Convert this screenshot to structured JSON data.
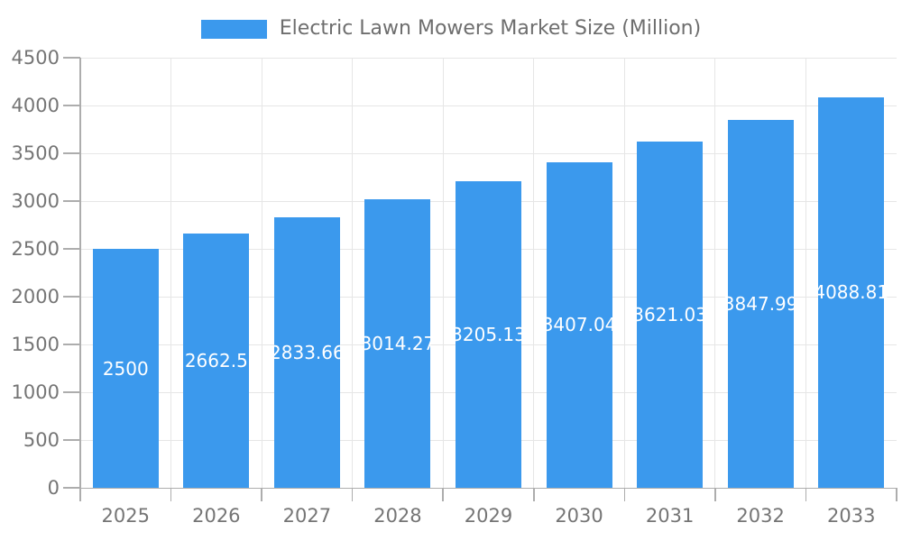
{
  "legend": {
    "label": "Electric Lawn Mowers Market Size (Million)"
  },
  "chart_data": {
    "type": "bar",
    "title": "Electric Lawn Mowers Market Size (Million)",
    "series_name": "Electric Lawn Mowers Market Size (Million)",
    "categories": [
      "2025",
      "2026",
      "2027",
      "2028",
      "2029",
      "2030",
      "2031",
      "2032",
      "2033"
    ],
    "values": [
      2500,
      2662.5,
      2833.66,
      3014.27,
      3205.13,
      3407.04,
      3621.03,
      3847.99,
      4088.81
    ],
    "value_labels": [
      "2500",
      "2662.5",
      "2833.66",
      "3014.27",
      "3205.13",
      "3407.04",
      "3621.03",
      "3847.99",
      "4088.81"
    ],
    "xlabel": "",
    "ylabel": "",
    "ylim": [
      0,
      4500
    ],
    "ytick_step": 500,
    "yticks": [
      0,
      500,
      1000,
      1500,
      2000,
      2500,
      3000,
      3500,
      4000,
      4500
    ],
    "grid": true,
    "legend_position": "top-center",
    "bar_label_position": "inside-center",
    "colors": {
      "bar": "#3b99ed",
      "grid_line": "#e6e6e6",
      "axis_line": "#adadad",
      "tick_label": "#757575",
      "legend_text": "#6e6e6e",
      "bar_label": "#ffffff",
      "background": "#ffffff"
    }
  }
}
